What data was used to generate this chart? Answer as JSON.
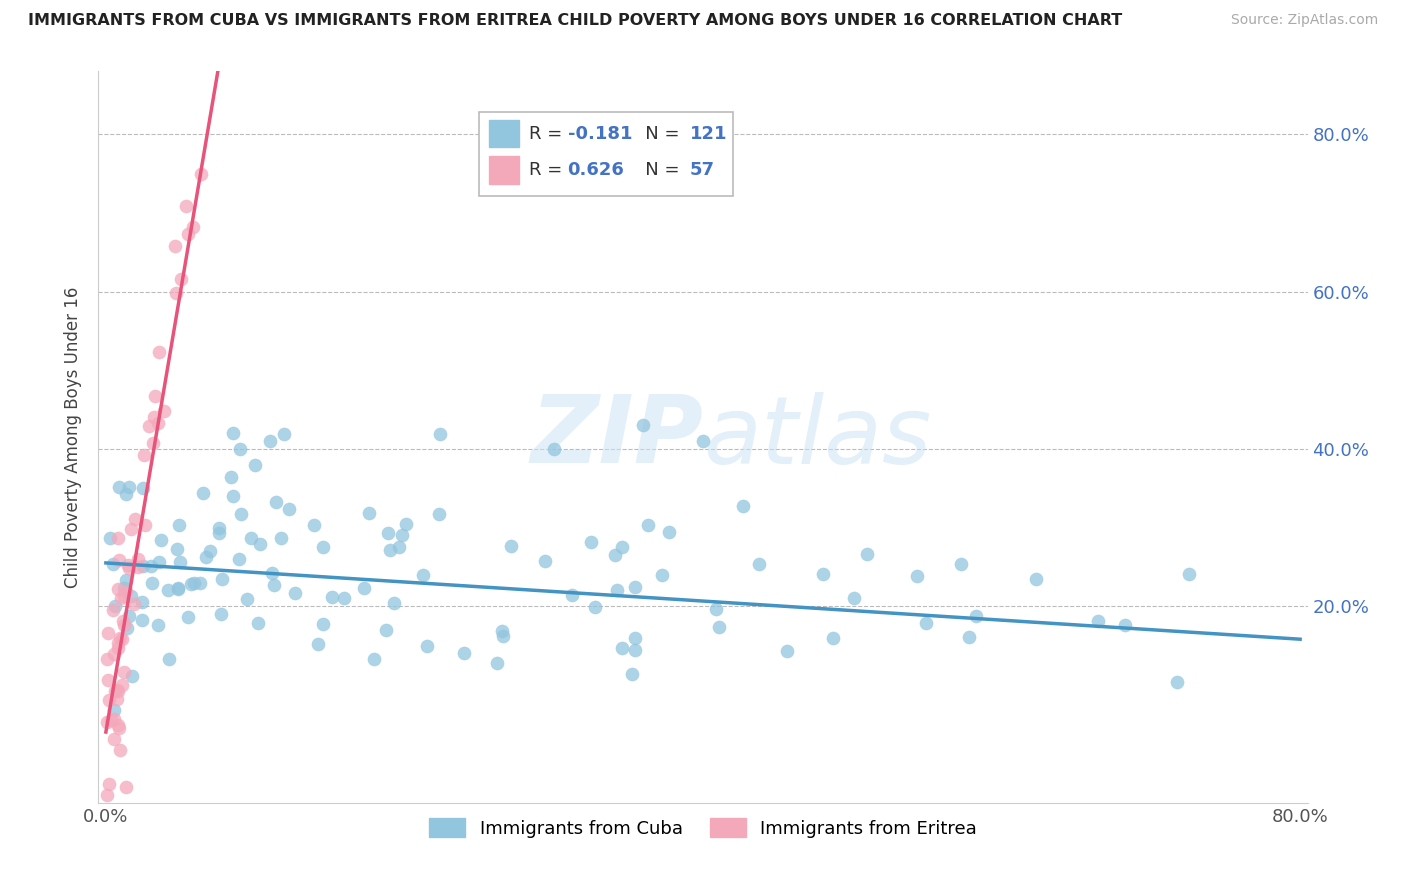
{
  "title": "IMMIGRANTS FROM CUBA VS IMMIGRANTS FROM ERITREA CHILD POVERTY AMONG BOYS UNDER 16 CORRELATION CHART",
  "source": "Source: ZipAtlas.com",
  "ylabel": "Child Poverty Among Boys Under 16",
  "watermark": "ZIPatlas",
  "xlim": [
    -0.005,
    0.805
  ],
  "ylim": [
    -0.05,
    0.88
  ],
  "xtick_positions": [
    0.0,
    0.8
  ],
  "xticklabels": [
    "0.0%",
    "80.0%"
  ],
  "ytick_positions": [
    0.0,
    0.2,
    0.4,
    0.6,
    0.8
  ],
  "yticklabels": [
    "",
    "20.0%",
    "40.0%",
    "60.0%",
    "80.0%"
  ],
  "cuba_color": "#92c5de",
  "eritrea_color": "#f4a9bb",
  "cuba_line_color": "#4393c3",
  "eritrea_line_color": "#e8537a",
  "cuba_R": -0.181,
  "cuba_N": 121,
  "eritrea_R": 0.626,
  "eritrea_N": 57,
  "legend_label_cuba": "Immigrants from Cuba",
  "legend_label_eritrea": "Immigrants from Eritrea",
  "cuba_line_x0": 0.0,
  "cuba_line_y0": 0.255,
  "cuba_line_x1": 0.8,
  "cuba_line_y1": 0.158,
  "eritrea_line_x0": 0.0,
  "eritrea_line_y0": 0.04,
  "eritrea_line_x1": 0.075,
  "eritrea_line_y1": 0.88
}
